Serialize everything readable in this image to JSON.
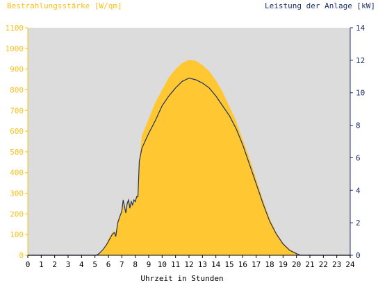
{
  "chart_data": {
    "type": "area",
    "left_axis_label": "Bestrahlungsstärke [W/qm]",
    "right_axis_label": "Leistung der Anlage [kW]",
    "xlabel": "Uhrzeit in Stunden",
    "xlim": [
      0,
      24
    ],
    "ylim_left": [
      0,
      1100
    ],
    "ylim_right": [
      0,
      14
    ],
    "x_ticks": [
      "0",
      "1",
      "2",
      "3",
      "4",
      "5",
      "6",
      "7",
      "8",
      "9",
      "10",
      "11",
      "12",
      "13",
      "14",
      "15",
      "16",
      "17",
      "18",
      "19",
      "20",
      "21",
      "22",
      "23",
      "24"
    ],
    "y_left_ticks": [
      "0",
      "100",
      "200",
      "300",
      "400",
      "500",
      "600",
      "700",
      "800",
      "900",
      "1000",
      "1100"
    ],
    "y_right_ticks": [
      "0",
      "2",
      "4",
      "6",
      "8",
      "10",
      "12",
      "14"
    ],
    "grid": false,
    "colors": {
      "irradiance": "#ffc832",
      "power": "#1c2f6b",
      "plot_bg": "#dcdcdc",
      "left_axis": "#f7c21b",
      "right_axis": "#1c2f6b"
    },
    "series": [
      {
        "unit": "W/qm",
        "axis": "left",
        "style": "filled-area",
        "points": [
          [
            0,
            0
          ],
          [
            5.0,
            0
          ],
          [
            5.2,
            5
          ],
          [
            5.5,
            20
          ],
          [
            5.8,
            50
          ],
          [
            6.0,
            80
          ],
          [
            6.2,
            100
          ],
          [
            6.35,
            120
          ],
          [
            6.5,
            100
          ],
          [
            6.7,
            170
          ],
          [
            6.9,
            200
          ],
          [
            7.0,
            230
          ],
          [
            7.1,
            280
          ],
          [
            7.2,
            240
          ],
          [
            7.3,
            210
          ],
          [
            7.4,
            260
          ],
          [
            7.5,
            280
          ],
          [
            7.6,
            230
          ],
          [
            7.7,
            270
          ],
          [
            7.8,
            250
          ],
          [
            7.9,
            275
          ],
          [
            8.0,
            265
          ],
          [
            8.1,
            290
          ],
          [
            8.2,
            300
          ],
          [
            8.3,
            460
          ],
          [
            8.5,
            580
          ],
          [
            9.0,
            660
          ],
          [
            9.5,
            740
          ],
          [
            10.0,
            800
          ],
          [
            10.5,
            860
          ],
          [
            11.0,
            900
          ],
          [
            11.5,
            930
          ],
          [
            12.0,
            945
          ],
          [
            12.5,
            940
          ],
          [
            13.0,
            920
          ],
          [
            13.5,
            890
          ],
          [
            14.0,
            845
          ],
          [
            14.5,
            790
          ],
          [
            15.0,
            720
          ],
          [
            15.5,
            650
          ],
          [
            16.0,
            560
          ],
          [
            16.5,
            470
          ],
          [
            17.0,
            370
          ],
          [
            17.5,
            270
          ],
          [
            18.0,
            180
          ],
          [
            18.5,
            110
          ],
          [
            19.0,
            60
          ],
          [
            19.5,
            30
          ],
          [
            20.0,
            10
          ],
          [
            20.3,
            0
          ],
          [
            24,
            0
          ]
        ]
      },
      {
        "unit": "kW",
        "axis": "right",
        "style": "line",
        "points": [
          [
            0,
            0
          ],
          [
            5.1,
            0
          ],
          [
            5.3,
            0.1
          ],
          [
            5.6,
            0.35
          ],
          [
            5.9,
            0.7
          ],
          [
            6.1,
            1.0
          ],
          [
            6.3,
            1.3
          ],
          [
            6.45,
            1.4
          ],
          [
            6.55,
            1.15
          ],
          [
            6.7,
            2.0
          ],
          [
            6.9,
            2.5
          ],
          [
            7.0,
            2.7
          ],
          [
            7.1,
            3.4
          ],
          [
            7.2,
            3.0
          ],
          [
            7.3,
            2.6
          ],
          [
            7.4,
            3.2
          ],
          [
            7.5,
            3.4
          ],
          [
            7.6,
            2.9
          ],
          [
            7.7,
            3.3
          ],
          [
            7.8,
            3.1
          ],
          [
            7.9,
            3.4
          ],
          [
            8.0,
            3.3
          ],
          [
            8.1,
            3.6
          ],
          [
            8.2,
            3.6
          ],
          [
            8.3,
            5.8
          ],
          [
            8.5,
            6.6
          ],
          [
            9.0,
            7.5
          ],
          [
            9.5,
            8.3
          ],
          [
            10.0,
            9.2
          ],
          [
            10.5,
            9.8
          ],
          [
            11.0,
            10.3
          ],
          [
            11.5,
            10.7
          ],
          [
            12.0,
            10.9
          ],
          [
            12.5,
            10.8
          ],
          [
            13.0,
            10.6
          ],
          [
            13.5,
            10.3
          ],
          [
            14.0,
            9.8
          ],
          [
            14.5,
            9.2
          ],
          [
            15.0,
            8.6
          ],
          [
            15.5,
            7.8
          ],
          [
            16.0,
            6.8
          ],
          [
            16.5,
            5.6
          ],
          [
            17.0,
            4.4
          ],
          [
            17.5,
            3.2
          ],
          [
            18.0,
            2.1
          ],
          [
            18.5,
            1.3
          ],
          [
            19.0,
            0.7
          ],
          [
            19.5,
            0.3
          ],
          [
            20.0,
            0.1
          ],
          [
            20.3,
            0
          ],
          [
            24,
            0
          ]
        ]
      }
    ]
  }
}
